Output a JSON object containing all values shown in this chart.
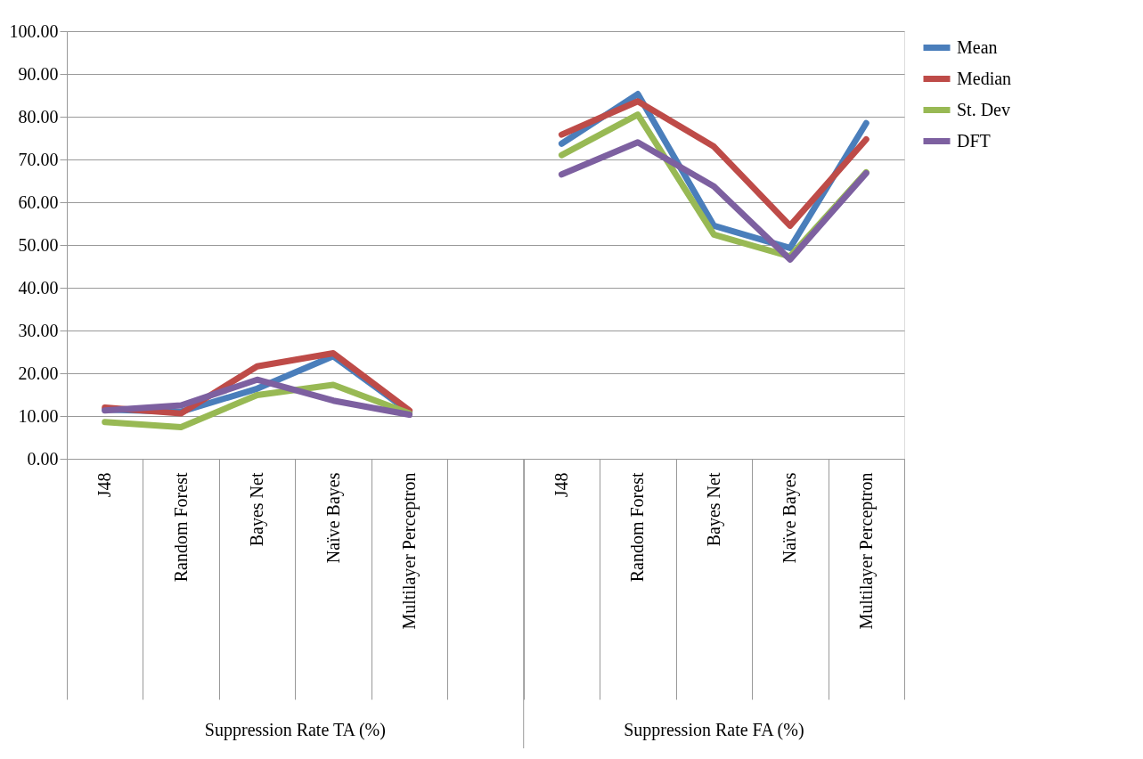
{
  "chart_data": {
    "type": "line",
    "categories": [
      "J48",
      "Random Forest",
      "Bayes Net",
      "Naïve Bayes",
      "Multilayer Perceptron",
      null,
      "J48",
      "Random Forest",
      "Bayes Net",
      "Naïve Bayes",
      "Multilayer Perceptron"
    ],
    "series": [
      {
        "name": "Mean",
        "color": "#4a7ebb",
        "values": [
          11.5,
          11.0,
          16.4,
          24.0,
          11.0,
          null,
          73.7,
          85.3,
          54.5,
          49.3,
          78.5
        ]
      },
      {
        "name": "Median",
        "color": "#be4b48",
        "values": [
          12.0,
          10.6,
          21.6,
          24.7,
          11.3,
          null,
          75.8,
          83.6,
          73.0,
          54.5,
          74.7
        ]
      },
      {
        "name": "St. Dev",
        "color": "#98b954",
        "values": [
          8.6,
          7.4,
          14.9,
          17.3,
          10.6,
          null,
          71.0,
          80.5,
          52.4,
          47.3,
          67.0
        ]
      },
      {
        "name": "DFT",
        "color": "#7d60a0",
        "values": [
          11.3,
          12.5,
          18.5,
          13.6,
          10.3,
          null,
          66.5,
          74.0,
          63.7,
          46.6,
          66.8
        ]
      }
    ],
    "ylim": [
      0,
      100
    ],
    "yticks": [
      {
        "value": 0,
        "label": "0.00"
      },
      {
        "value": 10,
        "label": "10.00"
      },
      {
        "value": 20,
        "label": "20.00"
      },
      {
        "value": 30,
        "label": "30.00"
      },
      {
        "value": 40,
        "label": "40.00"
      },
      {
        "value": 50,
        "label": "50.00"
      },
      {
        "value": 60,
        "label": "60.00"
      },
      {
        "value": 70,
        "label": "70.00"
      },
      {
        "value": 80,
        "label": "80.00"
      },
      {
        "value": 90,
        "label": "90.00"
      },
      {
        "value": 100,
        "label": "100.00"
      }
    ],
    "annotations": [
      "Suppression Rate TA (%)",
      "Suppression Rate FA (%)"
    ],
    "grid": "y",
    "legend": "right",
    "marker": "none",
    "line_style": "solid"
  }
}
